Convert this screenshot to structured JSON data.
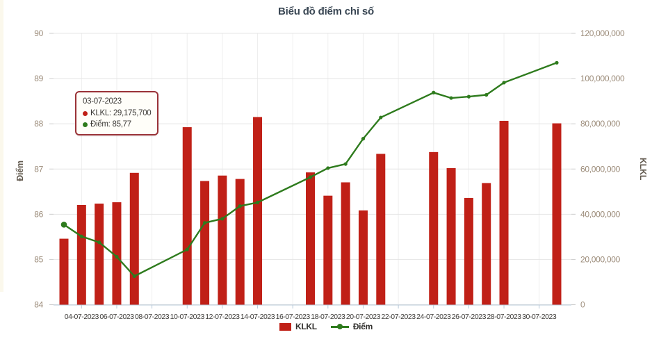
{
  "page": {
    "title": "Biểu đồ điểm chỉ số"
  },
  "colors": {
    "bar_red": "#c02017",
    "line_green": "#2e7b1d",
    "tooltip_border": "#9a3237",
    "tooltip_bg": "#fffef9",
    "h_gridline": "#e4e4e4",
    "v_gridline": "#eeeeee",
    "axis_line": "#b7c8d9",
    "bottom_tick": "#b7c8d9",
    "side_tick": "#cccccc",
    "tick_label": "#9c8c7a",
    "date_label": "#3d3b38",
    "axis_title": "#635b50",
    "title_text": "#3a4754"
  },
  "tooltip": {
    "date": "03-07-2023",
    "klkl": {
      "label": "KLKL:",
      "value": "29,175,700"
    },
    "diem": {
      "label": "Điểm:",
      "value": "85,77"
    }
  },
  "legend": {
    "klkl_label": "KLKL",
    "diem_label": "Điểm"
  },
  "chart_data": {
    "type": "combo-bar-line",
    "title": "Biểu đồ điểm chỉ số",
    "grid": "on",
    "legend_position": "bottom-center",
    "left_axis": {
      "title": "Điểm",
      "min": 84,
      "max": 90,
      "ticks": [
        {
          "label": "84",
          "value": 84
        },
        {
          "label": "85",
          "value": 85
        },
        {
          "label": "86",
          "value": 86
        },
        {
          "label": "87",
          "value": 87
        },
        {
          "label": "88",
          "value": 88
        },
        {
          "label": "89",
          "value": 89
        },
        {
          "label": "90",
          "value": 90
        }
      ]
    },
    "right_axis": {
      "title": "KLKL",
      "min": 0,
      "max": 120000000,
      "ticks": [
        {
          "label": "0",
          "value": 0
        },
        {
          "label": "20,000,000",
          "value": 20000000
        },
        {
          "label": "40,000,000",
          "value": 40000000
        },
        {
          "label": "60,000,000",
          "value": 60000000
        },
        {
          "label": "80,000,000",
          "value": 80000000
        },
        {
          "label": "100,000,000",
          "value": 100000000
        },
        {
          "label": "120,000,000",
          "value": 120000000
        }
      ]
    },
    "x_axis": {
      "day_min": 3,
      "day_max": 31,
      "tick_labels": [
        {
          "label": "04-07-2023",
          "day": 4
        },
        {
          "label": "06-07-2023",
          "day": 6
        },
        {
          "label": "08-07-2023",
          "day": 8
        },
        {
          "label": "10-07-2023",
          "day": 10
        },
        {
          "label": "12-07-2023",
          "day": 12
        },
        {
          "label": "14-07-2023",
          "day": 14
        },
        {
          "label": "16-07-2023",
          "day": 16
        },
        {
          "label": "18-07-2023",
          "day": 18
        },
        {
          "label": "20-07-2023",
          "day": 20
        },
        {
          "label": "22-07-2023",
          "day": 22
        },
        {
          "label": "24-07-2023",
          "day": 24
        },
        {
          "label": "26-07-2023",
          "day": 26
        },
        {
          "label": "28-07-2023",
          "day": 28
        },
        {
          "label": "30-07-2023",
          "day": 30
        }
      ]
    },
    "series": [
      {
        "name": "KLKL",
        "type": "bar",
        "axis": "right",
        "color": "#c02017"
      },
      {
        "name": "Điểm",
        "type": "line",
        "axis": "left",
        "color": "#2e7b1d"
      }
    ],
    "hovered_date": "03-07-2023",
    "points": [
      {
        "date": "03-07-2023",
        "day": 3,
        "klkl": 29175700,
        "diem": 85.77
      },
      {
        "date": "04-07-2023",
        "day": 4,
        "klkl": 44100000,
        "diem": 85.51
      },
      {
        "date": "05-07-2023",
        "day": 5,
        "klkl": 44700000,
        "diem": 85.38
      },
      {
        "date": "06-07-2023",
        "day": 6,
        "klkl": 45300000,
        "diem": 85.06
      },
      {
        "date": "07-07-2023",
        "day": 7,
        "klkl": 58300000,
        "diem": 84.63
      },
      {
        "date": "10-07-2023",
        "day": 10,
        "klkl": 78500000,
        "diem": 85.22
      },
      {
        "date": "11-07-2023",
        "day": 11,
        "klkl": 54700000,
        "diem": 85.81
      },
      {
        "date": "12-07-2023",
        "day": 12,
        "klkl": 57100000,
        "diem": 85.9
      },
      {
        "date": "13-07-2023",
        "day": 13,
        "klkl": 55600000,
        "diem": 86.18
      },
      {
        "date": "14-07-2023",
        "day": 14,
        "klkl": 83000000,
        "diem": 86.26
      },
      {
        "date": "17-07-2023",
        "day": 17,
        "klkl": 58500000,
        "diem": 86.82
      },
      {
        "date": "18-07-2023",
        "day": 18,
        "klkl": 48200000,
        "diem": 87.02
      },
      {
        "date": "19-07-2023",
        "day": 19,
        "klkl": 54100000,
        "diem": 87.11
      },
      {
        "date": "20-07-2023",
        "day": 20,
        "klkl": 41700000,
        "diem": 87.67
      },
      {
        "date": "21-07-2023",
        "day": 21,
        "klkl": 66700000,
        "diem": 88.14
      },
      {
        "date": "24-07-2023",
        "day": 24,
        "klkl": 67500000,
        "diem": 88.69
      },
      {
        "date": "25-07-2023",
        "day": 25,
        "klkl": 60400000,
        "diem": 88.57
      },
      {
        "date": "26-07-2023",
        "day": 26,
        "klkl": 47200000,
        "diem": 88.6
      },
      {
        "date": "27-07-2023",
        "day": 27,
        "klkl": 53800000,
        "diem": 88.64
      },
      {
        "date": "28-07-2023",
        "day": 28,
        "klkl": 81300000,
        "diem": 88.91
      },
      {
        "date": "31-07-2023",
        "day": 31,
        "klkl": 80200000,
        "diem": 89.35
      }
    ]
  }
}
